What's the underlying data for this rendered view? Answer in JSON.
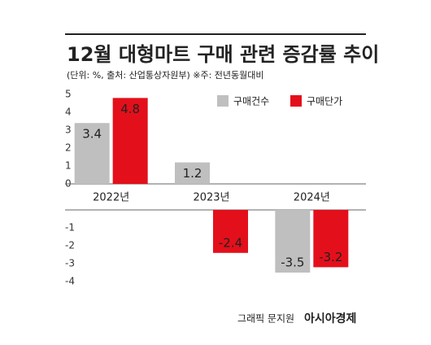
{
  "chart_data": {
    "type": "bar",
    "title": "12월 대형마트 구매 관련 증감률 추이",
    "subtitle": "(단위: %, 출처: 산업통상자원부) ※주: 전년동월대비",
    "categories": [
      "2022년",
      "2023년",
      "2024년"
    ],
    "series": [
      {
        "name": "구매건수",
        "color": "#bfbfbf",
        "values": [
          3.4,
          1.2,
          -3.5
        ]
      },
      {
        "name": "구매단가",
        "color": "#e3101b",
        "values": [
          4.8,
          -2.4,
          -3.2
        ]
      }
    ],
    "ylim": [
      -4,
      5
    ],
    "yticks": [
      -4,
      -3,
      -2,
      -1,
      0,
      1,
      2,
      3,
      4,
      5
    ],
    "credit": "그래픽 문지원",
    "source": "아시아경제"
  }
}
